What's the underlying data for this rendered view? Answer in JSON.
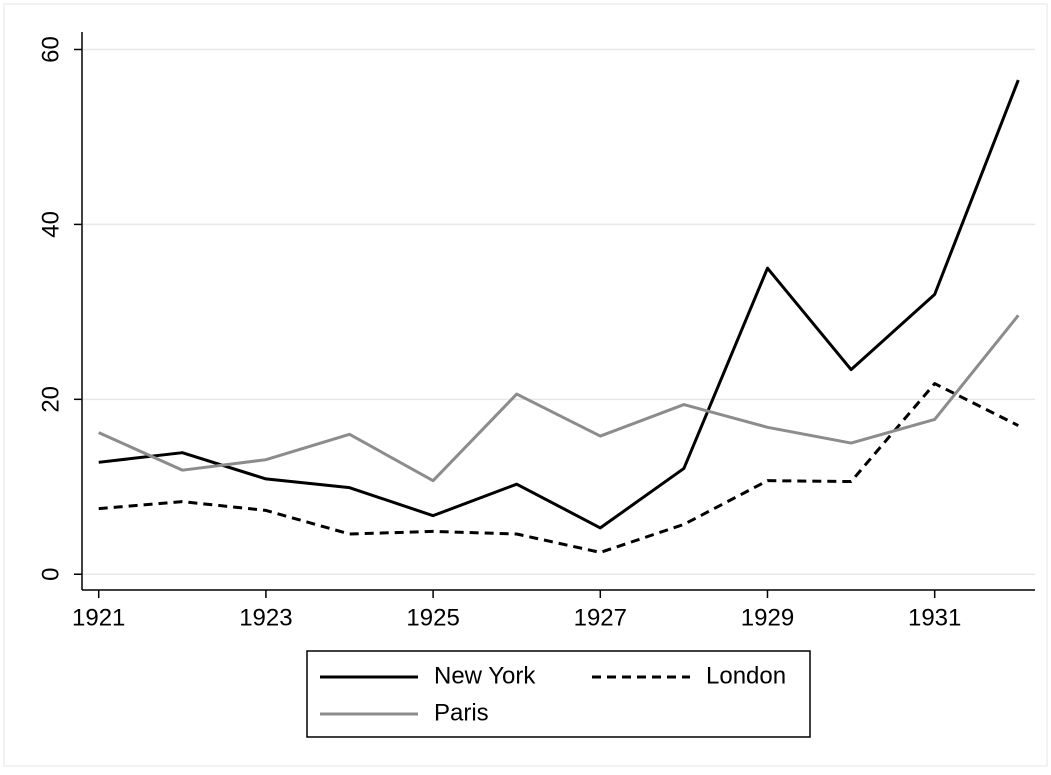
{
  "chart_data": {
    "type": "line",
    "x": [
      1921,
      1922,
      1923,
      1924,
      1925,
      1926,
      1927,
      1928,
      1929,
      1930,
      1931,
      1932
    ],
    "series": [
      {
        "name": "New York",
        "color": "#000000",
        "linestyle": "solid",
        "values": [
          12.8,
          13.9,
          10.9,
          9.9,
          6.7,
          10.3,
          5.3,
          12.1,
          35.0,
          23.4,
          32.0,
          56.5
        ]
      },
      {
        "name": "London",
        "color": "#000000",
        "linestyle": "dashed",
        "values": [
          7.5,
          8.3,
          7.3,
          4.6,
          4.9,
          4.6,
          2.5,
          5.7,
          10.7,
          10.6,
          21.8,
          17.0
        ]
      },
      {
        "name": "Paris",
        "color": "#8c8c8c",
        "linestyle": "solid",
        "values": [
          16.2,
          11.9,
          13.1,
          16.0,
          10.7,
          20.6,
          15.8,
          19.4,
          16.8,
          15.0,
          17.7,
          29.6
        ]
      }
    ],
    "xlim": [
      1920.8,
      1932.2
    ],
    "xticks": [
      1921,
      1923,
      1925,
      1927,
      1929,
      1931
    ],
    "ylim": [
      -1.8,
      62
    ],
    "yticks": [
      0,
      20,
      40,
      60
    ],
    "grid": true,
    "legend": "bottom"
  }
}
